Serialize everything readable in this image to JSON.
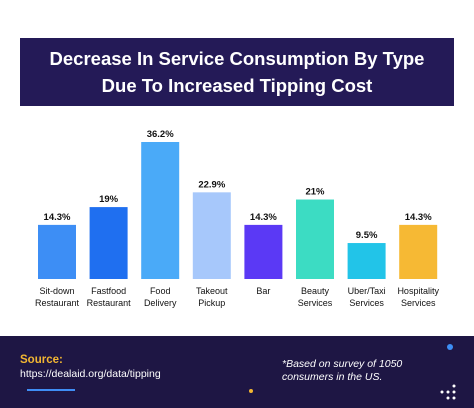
{
  "chart_data": {
    "type": "bar",
    "title_lines": [
      "Decrease In Service Consumption By Type",
      "Due To Increased Tipping Cost"
    ],
    "categories": [
      [
        "Sit-down",
        "Restaurant"
      ],
      [
        "Fastfood",
        "Restaurant"
      ],
      [
        "Food",
        "Delivery"
      ],
      [
        "Takeout",
        "Pickup"
      ],
      [
        "Bar"
      ],
      [
        "Beauty",
        "Services"
      ],
      [
        "Uber/Taxi",
        "Services"
      ],
      [
        "Hospitality",
        "Services"
      ]
    ],
    "values": [
      14.3,
      19,
      36.2,
      22.9,
      14.3,
      21,
      9.5,
      14.3
    ],
    "value_labels": [
      "14.3%",
      "19%",
      "36.2%",
      "22.9%",
      "14.3%",
      "21%",
      "9.5%",
      "14.3%"
    ],
    "colors": [
      "#3d8ef5",
      "#1f6ff0",
      "#4aaaf8",
      "#a7c8fb",
      "#5b39f5",
      "#3cdcc3",
      "#22c4e8",
      "#f6b934"
    ],
    "ylim": [
      0,
      36.2
    ],
    "grid": false,
    "legend": "none"
  },
  "footer": {
    "source_label": "Source:",
    "source_url": "https://dealaid.org/data/tipping",
    "footnote_line1": "*Based on survey of 1050",
    "footnote_line2": "consumers in the US."
  }
}
